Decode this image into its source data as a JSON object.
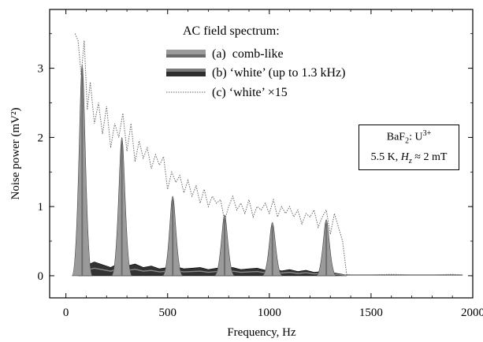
{
  "chart_data": {
    "type": "area",
    "xlabel": "Frequency, Hz",
    "ylabel": "Noise power (mV²)",
    "xlim": [
      -80,
      2000
    ],
    "ylim": [
      -0.32,
      3.85
    ],
    "xticks": [
      0,
      500,
      1000,
      1500,
      2000
    ],
    "yticks": [
      0,
      1,
      2,
      3
    ],
    "legend_title": "AC field spectrum:",
    "legend_position": "top-center",
    "series": [
      {
        "name": "(a)  comb-like",
        "style": "gray filled peaks",
        "color": "#9a9a9a",
        "peaks": [
          {
            "x": 80,
            "y": 3.05
          },
          {
            "x": 275,
            "y": 2.0
          },
          {
            "x": 525,
            "y": 1.15
          },
          {
            "x": 780,
            "y": 0.88
          },
          {
            "x": 1015,
            "y": 0.77
          },
          {
            "x": 1280,
            "y": 0.81
          }
        ]
      },
      {
        "name": "(b) ‘white’ (up to 1.3 kHz)",
        "style": "dark filled band",
        "color": "#333333",
        "x": [
          60,
          100,
          140,
          180,
          220,
          260,
          300,
          340,
          380,
          420,
          460,
          500,
          540,
          580,
          620,
          660,
          700,
          740,
          780,
          820,
          860,
          900,
          940,
          980,
          1020,
          1060,
          1100,
          1140,
          1180,
          1220,
          1260,
          1300,
          1340,
          1380
        ],
        "y": [
          0.22,
          0.15,
          0.2,
          0.16,
          0.12,
          0.18,
          0.14,
          0.17,
          0.12,
          0.14,
          0.1,
          0.12,
          0.13,
          0.1,
          0.11,
          0.12,
          0.09,
          0.11,
          0.1,
          0.12,
          0.09,
          0.1,
          0.11,
          0.08,
          0.1,
          0.07,
          0.09,
          0.06,
          0.08,
          0.05,
          0.06,
          0.05,
          0.03,
          0.01
        ]
      },
      {
        "name": "(c) ‘white’ ×15",
        "style": "gray dotted line",
        "color": "#666666",
        "x": [
          45,
          60,
          75,
          90,
          105,
          120,
          140,
          160,
          180,
          200,
          220,
          240,
          260,
          280,
          300,
          320,
          340,
          360,
          380,
          400,
          420,
          440,
          460,
          480,
          500,
          520,
          540,
          560,
          580,
          600,
          620,
          640,
          660,
          680,
          700,
          720,
          740,
          760,
          780,
          800,
          820,
          840,
          860,
          880,
          900,
          920,
          940,
          960,
          980,
          1000,
          1020,
          1040,
          1060,
          1080,
          1100,
          1120,
          1140,
          1160,
          1180,
          1200,
          1220,
          1240,
          1260,
          1280,
          1300,
          1320,
          1340,
          1360,
          1380,
          1400,
          1500,
          1600,
          1700,
          1800,
          1900,
          1950
        ],
        "y": [
          3.5,
          3.4,
          2.9,
          3.4,
          2.4,
          2.8,
          2.2,
          2.5,
          2.05,
          2.45,
          1.85,
          2.2,
          2.0,
          2.35,
          1.8,
          2.2,
          1.65,
          1.95,
          1.7,
          1.85,
          1.55,
          1.75,
          1.6,
          1.72,
          1.25,
          1.5,
          1.35,
          1.45,
          1.2,
          1.38,
          1.15,
          1.3,
          1.05,
          1.25,
          1.0,
          1.15,
          1.05,
          1.1,
          0.8,
          1.0,
          1.15,
          0.95,
          1.05,
          0.9,
          1.1,
          0.85,
          1.0,
          0.95,
          1.05,
          0.9,
          1.1,
          0.85,
          1.0,
          0.9,
          1.0,
          0.85,
          0.95,
          0.75,
          0.9,
          0.85,
          0.95,
          0.7,
          0.85,
          0.95,
          0.6,
          0.9,
          0.7,
          0.5,
          0.02,
          0.01,
          0.01,
          0.02,
          0.01,
          0.01,
          0.02,
          0.01
        ]
      }
    ],
    "annotation": {
      "line1_base": "BaF",
      "line1_sub": "2",
      "line1_rest": ": U",
      "line1_sup": "3+",
      "line2_prefix": "5.5 K, ",
      "line2_var": "H",
      "line2_sub": "z",
      "line2_rest": " ≈ 2 mT"
    }
  }
}
